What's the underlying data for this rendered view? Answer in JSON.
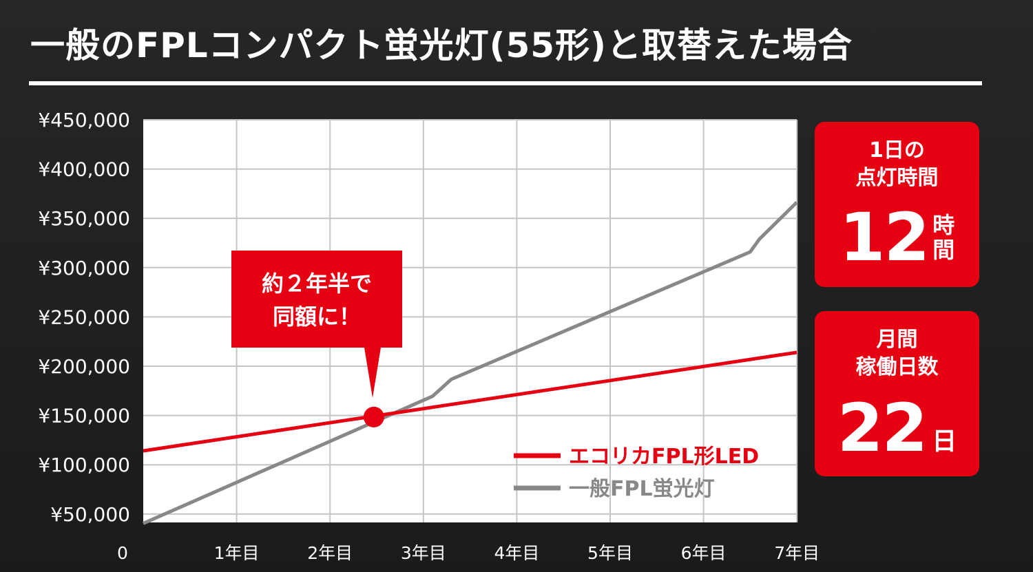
{
  "title": "一般のFPLコンパクト蛍光灯(55形)と取替えた場合",
  "callout": {
    "line1": "約２年半で",
    "line2": "同額に！"
  },
  "hours_box": {
    "label1": "1日の",
    "label2": "点灯時間",
    "value": "12",
    "unit1": "時",
    "unit2": "間"
  },
  "days_box": {
    "label1": "月間",
    "label2": "稼働日数",
    "value": "22",
    "unit": "日"
  },
  "chart_data": {
    "type": "line",
    "x_ticks": [
      "0",
      "1年目",
      "2年目",
      "3年目",
      "4年目",
      "5年目",
      "6年目",
      "7年目"
    ],
    "y_ticks": [
      "¥50,000",
      "¥100,000",
      "¥150,000",
      "¥200,000",
      "¥250,000",
      "¥300,000",
      "¥350,000",
      "¥400,000",
      "¥450,000"
    ],
    "xlim": [
      0,
      7
    ],
    "ylim": [
      50000,
      455000
    ],
    "series": [
      {
        "name": "エコリカFPL形LED",
        "color": "#e50012",
        "points": [
          [
            0,
            122000
          ],
          [
            7,
            221000
          ]
        ]
      },
      {
        "name": "一般FPL蛍光灯",
        "color": "#888888",
        "points": [
          [
            0,
            49000
          ],
          [
            3.1,
            177000
          ],
          [
            3.3,
            194000
          ],
          [
            6.5,
            322000
          ],
          [
            6.6,
            335000
          ],
          [
            7,
            372000
          ]
        ]
      }
    ],
    "marker": {
      "x": 2.47,
      "y": 156000,
      "color": "#e50012"
    },
    "grid": true,
    "legend": "bottom-right"
  }
}
